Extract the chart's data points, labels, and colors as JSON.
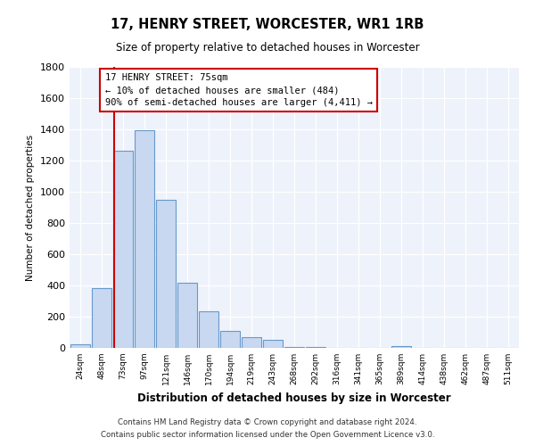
{
  "title": "17, HENRY STREET, WORCESTER, WR1 1RB",
  "subtitle": "Size of property relative to detached houses in Worcester",
  "xlabel": "Distribution of detached houses by size in Worcester",
  "ylabel": "Number of detached properties",
  "bin_labels": [
    "24sqm",
    "48sqm",
    "73sqm",
    "97sqm",
    "121sqm",
    "146sqm",
    "170sqm",
    "194sqm",
    "219sqm",
    "243sqm",
    "268sqm",
    "292sqm",
    "316sqm",
    "341sqm",
    "365sqm",
    "389sqm",
    "414sqm",
    "438sqm",
    "462sqm",
    "487sqm",
    "511sqm"
  ],
  "bar_values": [
    25,
    385,
    1265,
    1395,
    950,
    415,
    235,
    110,
    70,
    50,
    5,
    5,
    0,
    0,
    0,
    10,
    0,
    0,
    0,
    0,
    0
  ],
  "bar_color": "#c8d8f0",
  "bar_edge_color": "#6699cc",
  "vline_x_index": 2,
  "vline_color": "#cc0000",
  "annotation_title": "17 HENRY STREET: 75sqm",
  "annotation_line1": "← 10% of detached houses are smaller (484)",
  "annotation_line2": "90% of semi-detached houses are larger (4,411) →",
  "annotation_box_color": "#ffffff",
  "annotation_box_edge_color": "#cc0000",
  "ylim": [
    0,
    1800
  ],
  "yticks": [
    0,
    200,
    400,
    600,
    800,
    1000,
    1200,
    1400,
    1600,
    1800
  ],
  "footnote1": "Contains HM Land Registry data © Crown copyright and database right 2024.",
  "footnote2": "Contains public sector information licensed under the Open Government Licence v3.0.",
  "bg_color": "#eef2fb"
}
